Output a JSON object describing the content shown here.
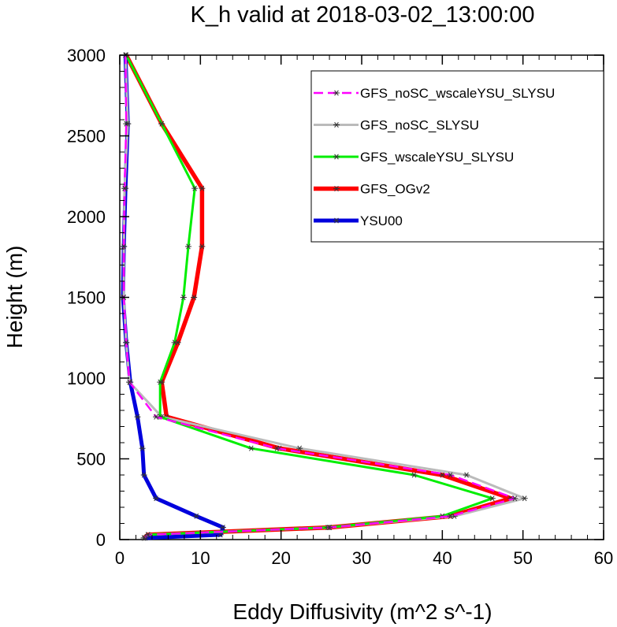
{
  "chart_data": {
    "type": "line",
    "title": "K_h valid at 2018-03-02_13:00:00",
    "xlabel": "Eddy Diffusivity (m^2 s^-1)",
    "ylabel": "Height (m)",
    "xlim": [
      0,
      60
    ],
    "ylim": [
      0,
      3000
    ],
    "xticks": [
      0,
      10,
      20,
      30,
      40,
      50,
      60
    ],
    "yticks": [
      0,
      500,
      1000,
      1500,
      2000,
      2500,
      3000
    ],
    "legend_position": "top-right",
    "series": [
      {
        "name": "GFS_noSC_wscaleYSU_SLYSU",
        "color": "#ff00ff",
        "style": "dashed",
        "points": [
          [
            3,
            10
          ],
          [
            3.5,
            30
          ],
          [
            26,
            75
          ],
          [
            41,
            145
          ],
          [
            49,
            255
          ],
          [
            41,
            400
          ],
          [
            19.5,
            565
          ],
          [
            4.5,
            760
          ],
          [
            1.2,
            975
          ],
          [
            0.8,
            1220
          ],
          [
            0.5,
            1500
          ],
          [
            0.5,
            1815
          ],
          [
            0.6,
            2175
          ],
          [
            0.8,
            2575
          ],
          [
            0.7,
            3000
          ]
        ]
      },
      {
        "name": "GFS_noSC_SLYSU",
        "color": "#bbbbbb",
        "style": "solid",
        "points": [
          [
            3,
            10
          ],
          [
            3.5,
            30
          ],
          [
            26,
            75
          ],
          [
            41.5,
            145
          ],
          [
            50.2,
            255
          ],
          [
            43,
            400
          ],
          [
            22.3,
            565
          ],
          [
            5.2,
            760
          ],
          [
            1.2,
            975
          ],
          [
            0.8,
            1220
          ],
          [
            0.5,
            1500
          ],
          [
            0.5,
            1815
          ],
          [
            0.6,
            2175
          ],
          [
            1,
            2575
          ],
          [
            0.7,
            3000
          ]
        ]
      },
      {
        "name": "GFS_wscaleYSU_SLYSU",
        "color": "#00ee00",
        "style": "solid",
        "points": [
          [
            3,
            10
          ],
          [
            3.5,
            30
          ],
          [
            25.8,
            75
          ],
          [
            40,
            145
          ],
          [
            46.2,
            255
          ],
          [
            36.5,
            400
          ],
          [
            16.3,
            565
          ],
          [
            5,
            760
          ],
          [
            5,
            975
          ],
          [
            6.8,
            1220
          ],
          [
            7.9,
            1500
          ],
          [
            8.5,
            1815
          ],
          [
            9.3,
            2175
          ],
          [
            5.2,
            2575
          ],
          [
            0.8,
            3000
          ]
        ]
      },
      {
        "name": "GFS_OGv2",
        "color": "#ff0000",
        "style": "solid",
        "points": [
          [
            3,
            10
          ],
          [
            3.5,
            30
          ],
          [
            26,
            75
          ],
          [
            41,
            145
          ],
          [
            48.5,
            255
          ],
          [
            40,
            400
          ],
          [
            19.8,
            565
          ],
          [
            5.8,
            760
          ],
          [
            5.2,
            975
          ],
          [
            7.2,
            1220
          ],
          [
            9.2,
            1500
          ],
          [
            10.2,
            1815
          ],
          [
            10.2,
            2175
          ],
          [
            5.2,
            2575
          ],
          [
            0.8,
            3000
          ]
        ]
      },
      {
        "name": "YSU00",
        "color": "#0000dd",
        "style": "solid",
        "points": [
          [
            3.2,
            10
          ],
          [
            12.5,
            30
          ],
          [
            12.8,
            75
          ],
          [
            9.5,
            145
          ],
          [
            4.5,
            255
          ],
          [
            3,
            400
          ],
          [
            2.8,
            565
          ],
          [
            2.2,
            760
          ],
          [
            1.3,
            975
          ],
          [
            0.8,
            1220
          ],
          [
            0.4,
            1500
          ],
          [
            0.5,
            1815
          ],
          [
            0.7,
            2175
          ],
          [
            1,
            2575
          ],
          [
            0.7,
            3000
          ]
        ]
      }
    ]
  }
}
